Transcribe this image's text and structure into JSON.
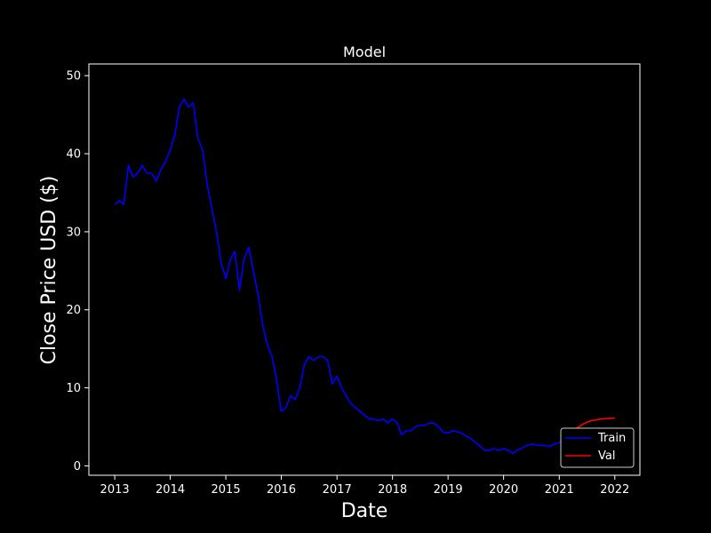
{
  "chart_data": {
    "type": "line",
    "title": "Model",
    "xlabel": "Date",
    "ylabel": "Close Price USD ($)",
    "xlim": [
      "2012-07-15",
      "2022-06-15"
    ],
    "ylim": [
      -1.2,
      51.5
    ],
    "x_ticks": [
      "2013",
      "2014",
      "2015",
      "2016",
      "2017",
      "2018",
      "2019",
      "2020",
      "2021",
      "2022"
    ],
    "y_ticks": [
      0,
      10,
      20,
      30,
      40,
      50
    ],
    "grid": false,
    "legend": "lower-right",
    "background": "#000000",
    "series": [
      {
        "name": "Train",
        "color": "#0000ff",
        "x": [
          "2013-01-02",
          "2013-02-01",
          "2013-03-01",
          "2013-04-01",
          "2013-05-01",
          "2013-06-01",
          "2013-07-01",
          "2013-08-01",
          "2013-09-01",
          "2013-10-01",
          "2013-11-01",
          "2013-12-01",
          "2014-01-01",
          "2014-02-01",
          "2014-03-01",
          "2014-04-01",
          "2014-05-01",
          "2014-06-01",
          "2014-07-01",
          "2014-08-01",
          "2014-09-01",
          "2014-10-01",
          "2014-11-01",
          "2014-12-01",
          "2015-01-01",
          "2015-02-01",
          "2015-03-01",
          "2015-04-01",
          "2015-05-01",
          "2015-06-01",
          "2015-07-01",
          "2015-08-01",
          "2015-09-01",
          "2015-10-01",
          "2015-11-01",
          "2015-12-01",
          "2016-01-01",
          "2016-02-01",
          "2016-03-01",
          "2016-04-01",
          "2016-05-01",
          "2016-06-01",
          "2016-07-01",
          "2016-08-01",
          "2016-09-01",
          "2016-10-01",
          "2016-11-01",
          "2016-12-01",
          "2017-01-01",
          "2017-02-01",
          "2017-03-01",
          "2017-04-01",
          "2017-05-01",
          "2017-06-01",
          "2017-07-01",
          "2017-08-01",
          "2017-09-01",
          "2017-10-01",
          "2017-11-01",
          "2017-12-01",
          "2018-01-01",
          "2018-02-01",
          "2018-03-01",
          "2018-04-01",
          "2018-05-01",
          "2018-06-01",
          "2018-07-01",
          "2018-08-01",
          "2018-09-01",
          "2018-10-01",
          "2018-11-01",
          "2018-12-01",
          "2019-01-01",
          "2019-02-01",
          "2019-03-01",
          "2019-04-01",
          "2019-05-01",
          "2019-06-01",
          "2019-07-01",
          "2019-08-01",
          "2019-09-01",
          "2019-10-01",
          "2019-11-01",
          "2019-12-01",
          "2020-01-01",
          "2020-02-01",
          "2020-03-01",
          "2020-04-01",
          "2020-05-01",
          "2020-06-01",
          "2020-07-01",
          "2020-08-01",
          "2020-09-01",
          "2020-10-01",
          "2020-11-01",
          "2020-12-01",
          "2021-01-01",
          "2021-02-01",
          "2021-03-01"
        ],
        "y": [
          33.5,
          34.0,
          33.5,
          38.5,
          37.0,
          37.5,
          38.5,
          37.5,
          37.5,
          36.5,
          38.0,
          39.0,
          40.5,
          42.5,
          46.0,
          47.0,
          46.0,
          46.5,
          42.0,
          40.5,
          36.0,
          33.0,
          30.0,
          26.0,
          24.0,
          26.5,
          27.5,
          22.5,
          26.5,
          28.0,
          25.0,
          22.0,
          18.0,
          15.5,
          14.0,
          11.0,
          7.0,
          7.5,
          9.0,
          8.5,
          10.0,
          13.0,
          14.0,
          13.5,
          14.0,
          14.0,
          13.5,
          10.5,
          11.5,
          10.0,
          9.0,
          8.0,
          7.5,
          7.0,
          6.5,
          6.0,
          6.0,
          5.8,
          6.0,
          5.5,
          6.0,
          5.5,
          4.0,
          4.5,
          4.5,
          5.0,
          5.2,
          5.2,
          5.5,
          5.5,
          5.0,
          4.3,
          4.2,
          4.5,
          4.4,
          4.2,
          3.8,
          3.5,
          3.0,
          2.5,
          2.0,
          2.0,
          2.2,
          2.0,
          2.2,
          2.0,
          1.6,
          2.0,
          2.3,
          2.6,
          2.8,
          2.7,
          2.6,
          2.6,
          2.5,
          2.8,
          3.0,
          3.3,
          3.6
        ]
      },
      {
        "name": "Val",
        "color": "#ff0000",
        "x": [
          "2021-03-01",
          "2021-04-01",
          "2021-05-01",
          "2021-06-01",
          "2021-07-01",
          "2021-08-01",
          "2021-09-01",
          "2021-10-01",
          "2021-11-01",
          "2021-12-01",
          "2022-01-01"
        ],
        "y": [
          3.6,
          4.4,
          4.9,
          5.3,
          5.6,
          5.8,
          5.9,
          6.0,
          6.05,
          6.1,
          6.15
        ]
      }
    ]
  }
}
